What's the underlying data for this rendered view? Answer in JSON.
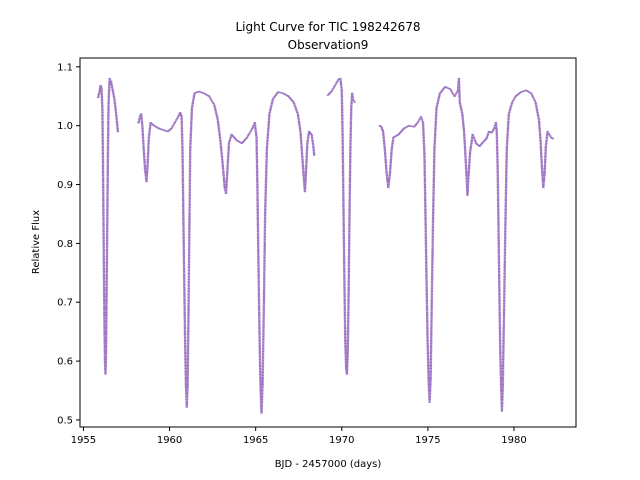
{
  "chart_data": {
    "type": "scatter",
    "title": "Light Curve for TIC 198242678",
    "subtitle": "Observation9",
    "xlabel": "BJD - 2457000 (days)",
    "ylabel": "Relative Flux",
    "xlim": [
      1954.8,
      1983.6
    ],
    "ylim": [
      0.488,
      1.115
    ],
    "x_ticks": [
      1955,
      1960,
      1965,
      1970,
      1975,
      1980
    ],
    "y_ticks": [
      0.5,
      0.6,
      0.7,
      0.8,
      0.9,
      1.0,
      1.1
    ],
    "grid": false,
    "legend": "none",
    "marker_color": "#9467bd",
    "series": [
      {
        "points": [
          [
            1955.85,
            1.048
          ],
          [
            1955.95,
            1.06
          ],
          [
            1956.0,
            1.068
          ],
          [
            1956.05,
            1.062
          ],
          [
            1956.1,
            1.03
          ],
          [
            1956.13,
            0.95
          ],
          [
            1956.16,
            0.85
          ],
          [
            1956.19,
            0.75
          ],
          [
            1956.22,
            0.66
          ],
          [
            1956.25,
            0.6
          ],
          [
            1956.28,
            0.578
          ],
          [
            1956.31,
            0.61
          ],
          [
            1956.34,
            0.7
          ],
          [
            1956.38,
            0.82
          ],
          [
            1956.42,
            0.95
          ],
          [
            1956.46,
            1.04
          ],
          [
            1956.52,
            1.08
          ],
          [
            1956.6,
            1.075
          ],
          [
            1956.7,
            1.06
          ],
          [
            1956.8,
            1.045
          ],
          [
            1956.9,
            1.02
          ],
          [
            1957.0,
            0.99
          ],
          [
            1958.2,
            1.005
          ],
          [
            1958.28,
            1.015
          ],
          [
            1958.35,
            1.02
          ],
          [
            1958.42,
            1.0
          ],
          [
            1958.5,
            0.96
          ],
          [
            1958.58,
            0.925
          ],
          [
            1958.66,
            0.905
          ],
          [
            1958.72,
            0.93
          ],
          [
            1958.8,
            0.98
          ],
          [
            1958.9,
            1.005
          ],
          [
            1959.1,
            1.0
          ],
          [
            1959.4,
            0.995
          ],
          [
            1959.7,
            0.992
          ],
          [
            1959.9,
            0.99
          ],
          [
            1960.1,
            0.995
          ],
          [
            1960.3,
            1.005
          ],
          [
            1960.5,
            1.015
          ],
          [
            1960.62,
            1.022
          ],
          [
            1960.7,
            1.015
          ],
          [
            1960.75,
            0.96
          ],
          [
            1960.8,
            0.85
          ],
          [
            1960.85,
            0.74
          ],
          [
            1960.9,
            0.64
          ],
          [
            1960.95,
            0.56
          ],
          [
            1961.0,
            0.522
          ],
          [
            1961.05,
            0.56
          ],
          [
            1961.1,
            0.68
          ],
          [
            1961.15,
            0.82
          ],
          [
            1961.2,
            0.96
          ],
          [
            1961.3,
            1.03
          ],
          [
            1961.45,
            1.055
          ],
          [
            1961.7,
            1.058
          ],
          [
            1962.0,
            1.055
          ],
          [
            1962.3,
            1.05
          ],
          [
            1962.6,
            1.035
          ],
          [
            1962.8,
            1.01
          ],
          [
            1962.95,
            0.975
          ],
          [
            1963.1,
            0.93
          ],
          [
            1963.2,
            0.895
          ],
          [
            1963.28,
            0.885
          ],
          [
            1963.35,
            0.92
          ],
          [
            1963.45,
            0.97
          ],
          [
            1963.6,
            0.985
          ],
          [
            1963.9,
            0.975
          ],
          [
            1964.2,
            0.97
          ],
          [
            1964.5,
            0.98
          ],
          [
            1964.8,
            0.995
          ],
          [
            1964.95,
            1.005
          ],
          [
            1965.05,
            0.98
          ],
          [
            1965.1,
            0.9
          ],
          [
            1965.15,
            0.79
          ],
          [
            1965.2,
            0.69
          ],
          [
            1965.25,
            0.6
          ],
          [
            1965.3,
            0.54
          ],
          [
            1965.34,
            0.512
          ],
          [
            1965.4,
            0.56
          ],
          [
            1965.48,
            0.7
          ],
          [
            1965.55,
            0.85
          ],
          [
            1965.65,
            0.96
          ],
          [
            1965.8,
            1.02
          ],
          [
            1966.0,
            1.045
          ],
          [
            1966.3,
            1.057
          ],
          [
            1966.6,
            1.055
          ],
          [
            1966.9,
            1.05
          ],
          [
            1967.2,
            1.04
          ],
          [
            1967.45,
            1.02
          ],
          [
            1967.6,
            0.99
          ],
          [
            1967.7,
            0.95
          ],
          [
            1967.8,
            0.91
          ],
          [
            1967.86,
            0.888
          ],
          [
            1967.92,
            0.92
          ],
          [
            1968.0,
            0.97
          ],
          [
            1968.1,
            0.99
          ],
          [
            1968.25,
            0.985
          ],
          [
            1968.35,
            0.965
          ],
          [
            1968.4,
            0.95
          ],
          [
            1969.2,
            1.052
          ],
          [
            1969.4,
            1.058
          ],
          [
            1969.6,
            1.068
          ],
          [
            1969.8,
            1.078
          ],
          [
            1969.92,
            1.08
          ],
          [
            1970.0,
            1.06
          ],
          [
            1970.05,
            0.98
          ],
          [
            1970.1,
            0.86
          ],
          [
            1970.15,
            0.74
          ],
          [
            1970.2,
            0.64
          ],
          [
            1970.25,
            0.59
          ],
          [
            1970.3,
            0.578
          ],
          [
            1970.35,
            0.62
          ],
          [
            1970.4,
            0.72
          ],
          [
            1970.45,
            0.85
          ],
          [
            1970.5,
            0.96
          ],
          [
            1970.55,
            1.03
          ],
          [
            1970.6,
            1.055
          ],
          [
            1970.65,
            1.045
          ],
          [
            1970.75,
            1.04
          ],
          [
            1972.2,
            1.0
          ],
          [
            1972.3,
            0.998
          ],
          [
            1972.4,
            0.99
          ],
          [
            1972.5,
            0.96
          ],
          [
            1972.6,
            0.92
          ],
          [
            1972.7,
            0.895
          ],
          [
            1972.8,
            0.92
          ],
          [
            1972.9,
            0.96
          ],
          [
            1973.0,
            0.98
          ],
          [
            1973.3,
            0.985
          ],
          [
            1973.6,
            0.995
          ],
          [
            1973.9,
            1.0
          ],
          [
            1974.2,
            0.998
          ],
          [
            1974.4,
            1.005
          ],
          [
            1974.6,
            1.015
          ],
          [
            1974.72,
            1.005
          ],
          [
            1974.8,
            0.95
          ],
          [
            1974.86,
            0.85
          ],
          [
            1974.92,
            0.74
          ],
          [
            1974.98,
            0.64
          ],
          [
            1975.04,
            0.57
          ],
          [
            1975.1,
            0.53
          ],
          [
            1975.16,
            0.57
          ],
          [
            1975.22,
            0.69
          ],
          [
            1975.3,
            0.84
          ],
          [
            1975.38,
            0.96
          ],
          [
            1975.5,
            1.03
          ],
          [
            1975.7,
            1.055
          ],
          [
            1976.0,
            1.066
          ],
          [
            1976.3,
            1.062
          ],
          [
            1976.55,
            1.05
          ],
          [
            1976.75,
            1.06
          ],
          [
            1976.8,
            1.08
          ],
          [
            1976.85,
            1.04
          ],
          [
            1977.0,
            1.02
          ],
          [
            1977.1,
            0.99
          ],
          [
            1977.18,
            0.95
          ],
          [
            1977.25,
            0.91
          ],
          [
            1977.3,
            0.882
          ],
          [
            1977.35,
            0.91
          ],
          [
            1977.45,
            0.955
          ],
          [
            1977.6,
            0.985
          ],
          [
            1977.8,
            0.97
          ],
          [
            1978.0,
            0.965
          ],
          [
            1978.2,
            0.972
          ],
          [
            1978.4,
            0.978
          ],
          [
            1978.55,
            0.99
          ],
          [
            1978.7,
            0.988
          ],
          [
            1978.85,
            0.995
          ],
          [
            1978.95,
            1.005
          ],
          [
            1979.0,
            0.99
          ],
          [
            1979.05,
            0.93
          ],
          [
            1979.1,
            0.83
          ],
          [
            1979.15,
            0.72
          ],
          [
            1979.2,
            0.62
          ],
          [
            1979.25,
            0.56
          ],
          [
            1979.3,
            0.515
          ],
          [
            1979.35,
            0.56
          ],
          [
            1979.42,
            0.68
          ],
          [
            1979.5,
            0.83
          ],
          [
            1979.58,
            0.96
          ],
          [
            1979.7,
            1.02
          ],
          [
            1979.9,
            1.04
          ],
          [
            1980.1,
            1.05
          ],
          [
            1980.4,
            1.057
          ],
          [
            1980.7,
            1.06
          ],
          [
            1981.0,
            1.055
          ],
          [
            1981.25,
            1.04
          ],
          [
            1981.45,
            1.01
          ],
          [
            1981.55,
            0.97
          ],
          [
            1981.62,
            0.93
          ],
          [
            1981.7,
            0.895
          ],
          [
            1981.78,
            0.92
          ],
          [
            1981.85,
            0.965
          ],
          [
            1981.95,
            0.99
          ],
          [
            1982.05,
            0.985
          ],
          [
            1982.15,
            0.98
          ],
          [
            1982.25,
            0.978
          ]
        ]
      }
    ]
  }
}
